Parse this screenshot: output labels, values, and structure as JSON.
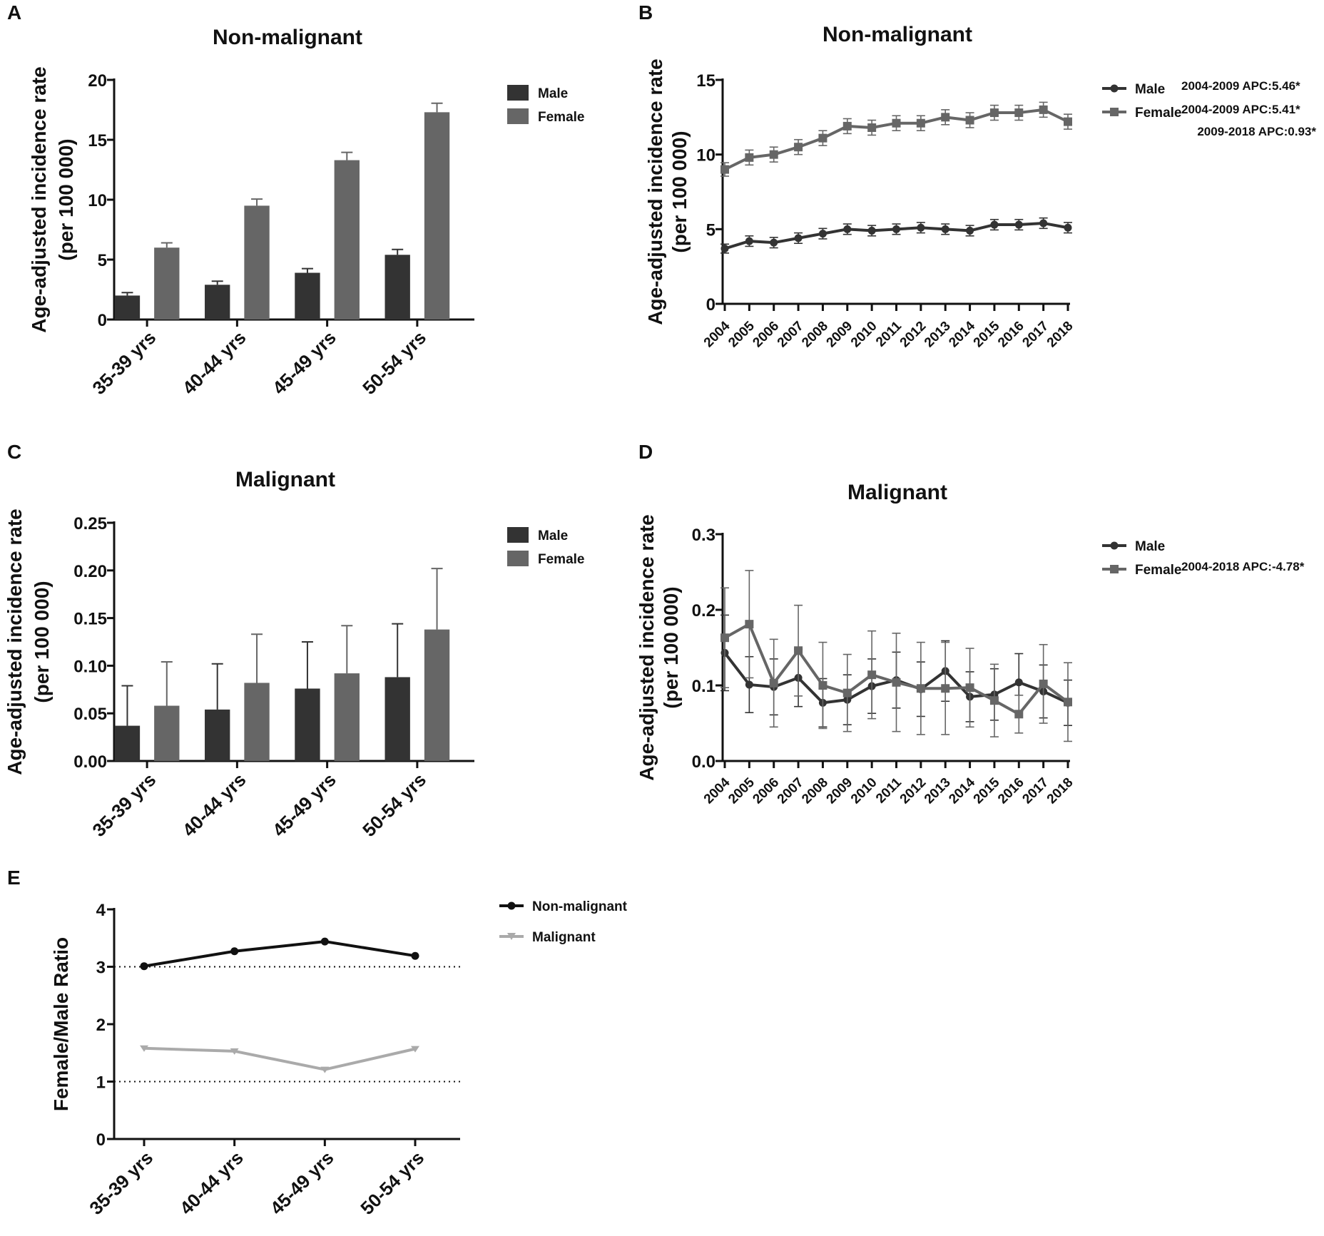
{
  "chart_data": [
    {
      "panel": "A",
      "type": "bar",
      "title": "Non-malignant",
      "ylabel": "Age-adjusted incidence rate",
      "ylabel2": "(per 100 000)",
      "categories": [
        "35-39 yrs",
        "40-44 yrs",
        "45-49 yrs",
        "50-54 yrs"
      ],
      "ylim": [
        0,
        20
      ],
      "yticks": [
        "0",
        "5",
        "10",
        "15",
        "20"
      ],
      "series": [
        {
          "name": "Male",
          "color": "#333333",
          "values": [
            2.0,
            2.9,
            3.9,
            5.4
          ],
          "err": [
            0.25,
            0.3,
            0.35,
            0.45
          ]
        },
        {
          "name": "Female",
          "color": "#666666",
          "values": [
            6.0,
            9.5,
            13.3,
            17.3
          ],
          "err": [
            0.4,
            0.55,
            0.65,
            0.75
          ]
        }
      ]
    },
    {
      "panel": "B",
      "type": "line",
      "title": "Non-malignant",
      "ylabel": "Age-adjusted incidence rate",
      "ylabel2": "(per 100 000)",
      "x": [
        "2004",
        "2005",
        "2006",
        "2007",
        "2008",
        "2009",
        "2010",
        "2011",
        "2012",
        "2013",
        "2014",
        "2015",
        "2016",
        "2017",
        "2018"
      ],
      "ylim": [
        0,
        15
      ],
      "yticks": [
        "0",
        "5",
        "10",
        "15"
      ],
      "series": [
        {
          "name": "Male",
          "color": "#333333",
          "marker": "circle",
          "values": [
            3.7,
            4.2,
            4.1,
            4.4,
            4.7,
            5.0,
            4.9,
            5.0,
            5.1,
            5.0,
            4.9,
            5.3,
            5.3,
            5.4,
            5.1
          ],
          "err": [
            0.3,
            0.35,
            0.35,
            0.35,
            0.35,
            0.35,
            0.35,
            0.35,
            0.35,
            0.35,
            0.35,
            0.35,
            0.35,
            0.35,
            0.35
          ],
          "annotation": [
            "2004-2009 APC:5.46*"
          ]
        },
        {
          "name": "Female",
          "color": "#666666",
          "marker": "square",
          "values": [
            9.0,
            9.8,
            10.0,
            10.5,
            11.1,
            11.9,
            11.8,
            12.1,
            12.1,
            12.5,
            12.3,
            12.8,
            12.8,
            13.0,
            12.2
          ],
          "err": [
            0.45,
            0.5,
            0.5,
            0.5,
            0.5,
            0.5,
            0.5,
            0.5,
            0.5,
            0.5,
            0.5,
            0.5,
            0.5,
            0.5,
            0.5
          ],
          "annotation": [
            "2004-2009 APC:5.41*",
            "2009-2018 APC:0.93*"
          ]
        }
      ]
    },
    {
      "panel": "C",
      "type": "bar",
      "title": "Malignant",
      "ylabel": "Age-adjusted incidence rate",
      "ylabel2": "(per 100 000)",
      "categories": [
        "35-39 yrs",
        "40-44 yrs",
        "45-49 yrs",
        "50-54 yrs"
      ],
      "ylim": [
        0,
        0.25
      ],
      "yticks": [
        "0.00",
        "0.05",
        "0.10",
        "0.15",
        "0.20",
        "0.25"
      ],
      "series": [
        {
          "name": "Male",
          "color": "#333333",
          "values": [
            0.037,
            0.054,
            0.076,
            0.088
          ],
          "err": [
            0.042,
            0.048,
            0.049,
            0.056
          ]
        },
        {
          "name": "Female",
          "color": "#666666",
          "values": [
            0.058,
            0.082,
            0.092,
            0.138
          ],
          "err": [
            0.046,
            0.051,
            0.05,
            0.064
          ]
        }
      ]
    },
    {
      "panel": "D",
      "type": "line",
      "title": "Malignant",
      "ylabel": "Age-adjusted incidence rate",
      "ylabel2": "(per 100 000)",
      "x": [
        "2004",
        "2005",
        "2006",
        "2007",
        "2008",
        "2009",
        "2010",
        "2011",
        "2012",
        "2013",
        "2014",
        "2015",
        "2016",
        "2017",
        "2018"
      ],
      "ylim": [
        0,
        0.3
      ],
      "yticks": [
        "0.0",
        "0.1",
        "0.2",
        "0.3"
      ],
      "series": [
        {
          "name": "Male",
          "color": "#333333",
          "marker": "circle",
          "values": [
            0.143,
            0.101,
            0.098,
            0.11,
            0.077,
            0.081,
            0.099,
            0.107,
            0.095,
            0.119,
            0.085,
            0.088,
            0.104,
            0.092,
            0.077
          ],
          "err": [
            0.05,
            0.037,
            0.037,
            0.038,
            0.032,
            0.033,
            0.036,
            0.037,
            0.036,
            0.04,
            0.033,
            0.034,
            0.038,
            0.035,
            0.03
          ],
          "annotation": []
        },
        {
          "name": "Female",
          "color": "#666666",
          "marker": "square",
          "values": [
            0.163,
            0.181,
            0.103,
            0.146,
            0.1,
            0.09,
            0.114,
            0.104,
            0.096,
            0.096,
            0.097,
            0.08,
            0.062,
            0.102,
            0.078
          ],
          "err": [
            0.066,
            0.071,
            0.058,
            0.06,
            0.057,
            0.051,
            0.058,
            0.065,
            0.061,
            0.061,
            0.052,
            0.048,
            0.025,
            0.052,
            0.052
          ],
          "annotation": [
            "2004-2018 APC:-4.78*"
          ]
        }
      ]
    },
    {
      "panel": "E",
      "type": "line",
      "title": "",
      "ylabel": "Female/Male Ratio",
      "ylabel2": "",
      "categories": [
        "35-39 yrs",
        "40-44 yrs",
        "45-49 yrs",
        "50-54 yrs"
      ],
      "ylim": [
        0,
        4
      ],
      "yticks": [
        "0",
        "1",
        "2",
        "3",
        "4"
      ],
      "reference_lines": [
        1,
        3
      ],
      "series": [
        {
          "name": "Non-malignant",
          "color": "#111111",
          "marker": "circle",
          "values": [
            3.01,
            3.27,
            3.44,
            3.19
          ]
        },
        {
          "name": "Malignant",
          "color": "#aaaaaa",
          "marker": "triangle-down",
          "values": [
            1.58,
            1.53,
            1.21,
            1.57
          ]
        }
      ]
    }
  ]
}
